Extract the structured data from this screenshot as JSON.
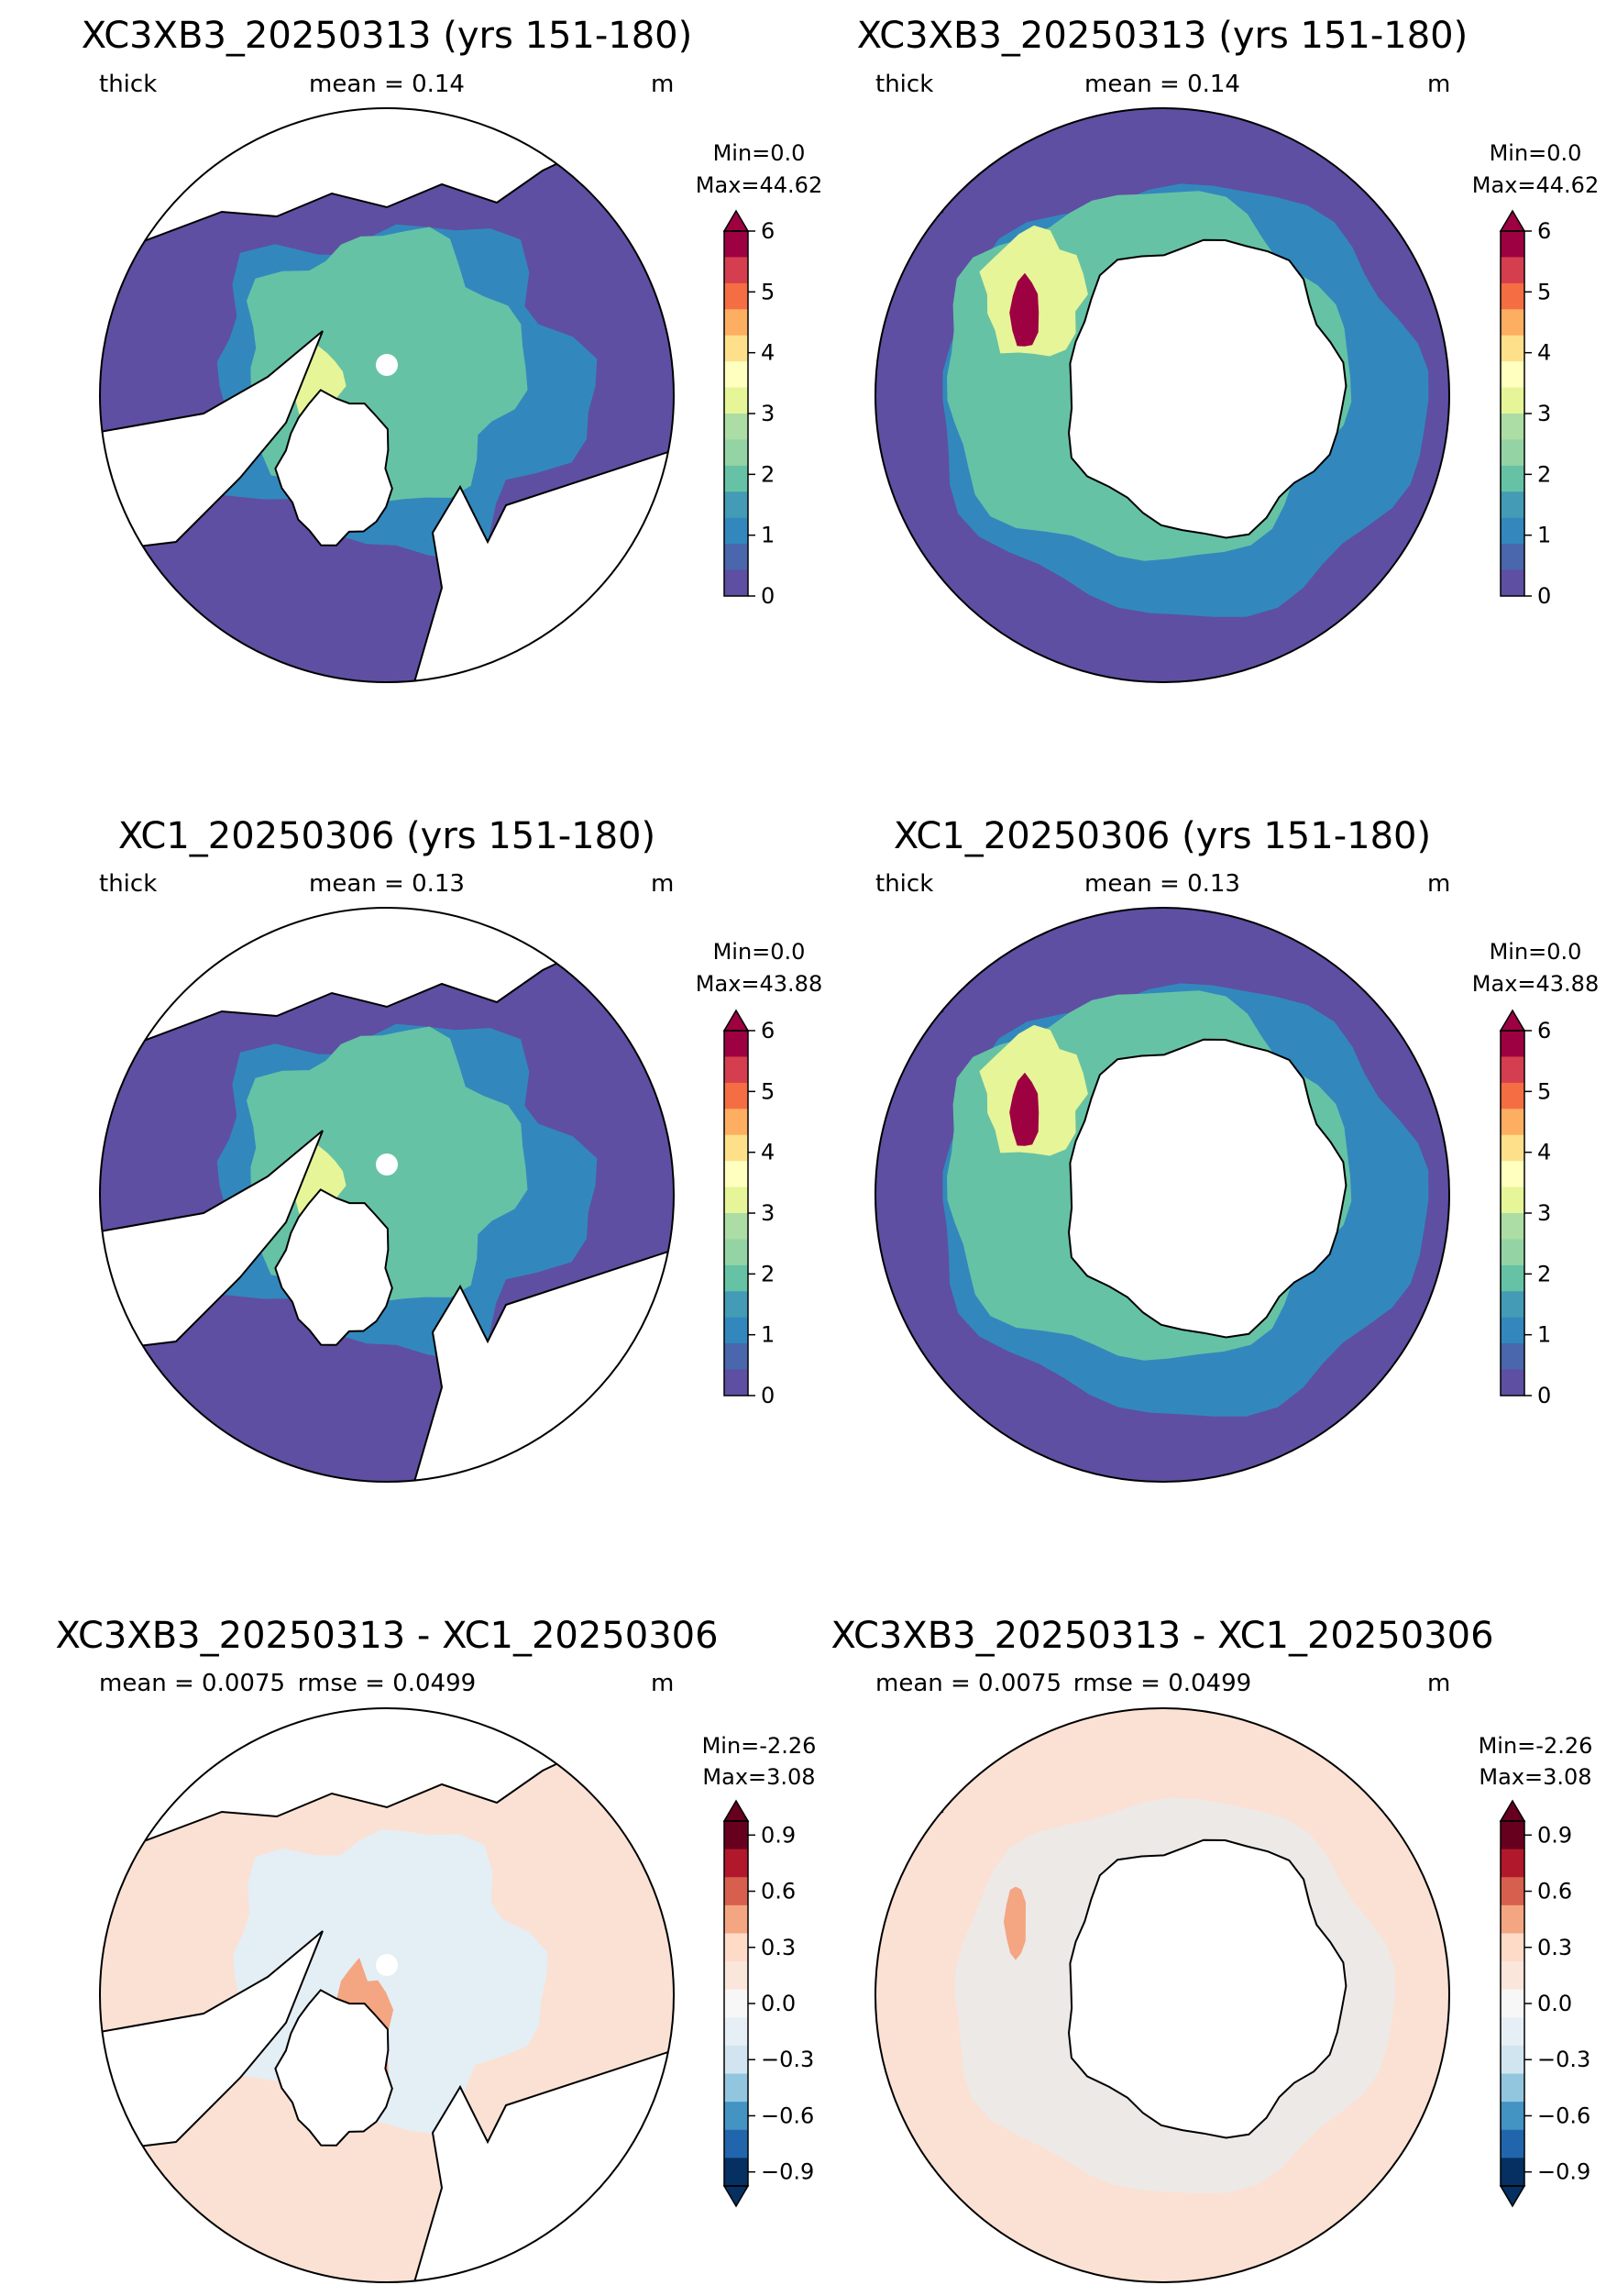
{
  "panels": [
    {
      "title": "XC3XB3_20250313 (yrs 151-180)",
      "left_label": "thick",
      "mid_label": "mean = 0.14",
      "unit": "m",
      "min_label": "Min=0.0",
      "max_label": "Max=44.62",
      "hemisphere": "north",
      "colorbar": "thickness"
    },
    {
      "title": "XC3XB3_20250313 (yrs 151-180)",
      "left_label": "thick",
      "mid_label": "mean = 0.14",
      "unit": "m",
      "min_label": "Min=0.0",
      "max_label": "Max=44.62",
      "hemisphere": "south",
      "colorbar": "thickness"
    },
    {
      "title": "XC1_20250306 (yrs 151-180)",
      "left_label": "thick",
      "mid_label": "mean = 0.13",
      "unit": "m",
      "min_label": "Min=0.0",
      "max_label": "Max=43.88",
      "hemisphere": "north",
      "colorbar": "thickness"
    },
    {
      "title": "XC1_20250306 (yrs 151-180)",
      "left_label": "thick",
      "mid_label": "mean = 0.13",
      "unit": "m",
      "min_label": "Min=0.0",
      "max_label": "Max=43.88",
      "hemisphere": "south",
      "colorbar": "thickness"
    },
    {
      "title": "XC3XB3_20250313 - XC1_20250306",
      "left_label": "mean = 0.0075",
      "mid_label": "rmse = 0.0499",
      "unit": "m",
      "min_label": "Min=-2.26",
      "max_label": "Max=3.08",
      "hemisphere": "north",
      "colorbar": "difference"
    },
    {
      "title": "XC3XB3_20250313 - XC1_20250306",
      "left_label": "mean = 0.0075",
      "mid_label": "rmse = 0.0499",
      "unit": "m",
      "min_label": "Min=-2.26",
      "max_label": "Max=3.08",
      "hemisphere": "south",
      "colorbar": "difference"
    }
  ],
  "colorbars": {
    "thickness": {
      "ticks": [
        "0",
        "1",
        "2",
        "3",
        "4",
        "5",
        "6"
      ],
      "colors": [
        "#5e4fa2",
        "#4a66ac",
        "#3288bd",
        "#439bb5",
        "#66c2a5",
        "#94d4a4",
        "#abdda4",
        "#e6f598",
        "#ffffbf",
        "#fee08b",
        "#fdae61",
        "#f46d43",
        "#d53e4f",
        "#9e0142"
      ]
    },
    "difference": {
      "ticks": [
        "−0.9",
        "−0.6",
        "−0.3",
        "0.0",
        "0.3",
        "0.6",
        "0.9"
      ],
      "colors": [
        "#053061",
        "#2166ac",
        "#4393c3",
        "#92c5de",
        "#d1e5f0",
        "#e6eff5",
        "#f7f7f7",
        "#fbe6dc",
        "#fddbc7",
        "#f4a582",
        "#d6604d",
        "#b2182b",
        "#67001f"
      ]
    }
  },
  "map_colors": {
    "open_ocean_thick": "#5e4fa2",
    "low_ice": "#3288bd",
    "mid_ice": "#66c2a5",
    "high_ice": "#e6f598",
    "very_high": "#f46d43",
    "max": "#9e0142",
    "diff_bg": "#fbe1d3",
    "diff_pos": "#f4a582",
    "diff_neg": "#e4eef5",
    "land": "#ffffff"
  }
}
